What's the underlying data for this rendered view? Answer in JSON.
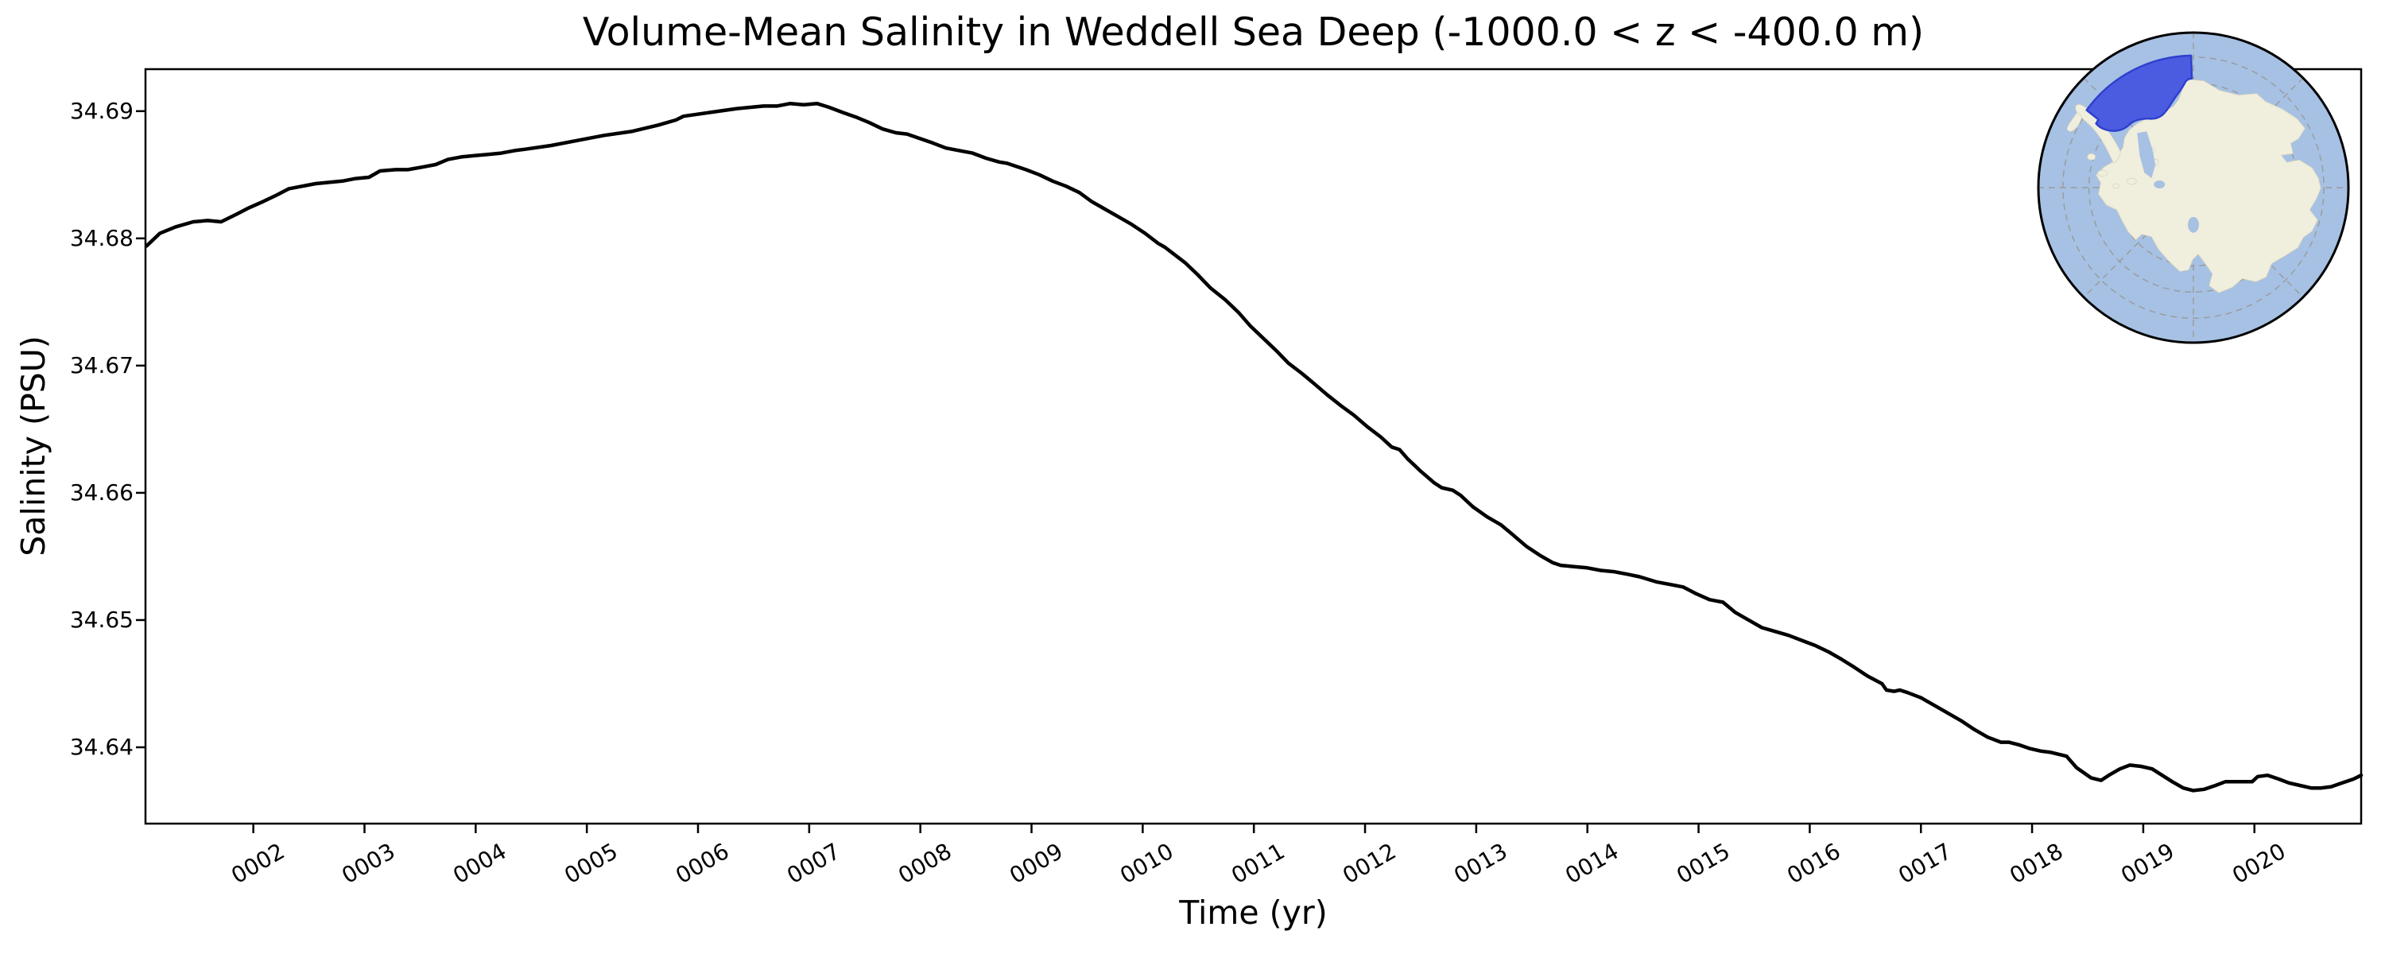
{
  "title": "Volume-Mean Salinity in Weddell Sea Deep (-1000.0 < z < -400.0 m)",
  "chart_data": {
    "type": "line",
    "title": "Volume-Mean Salinity in Weddell Sea Deep (-1000.0 < z < -400.0 m)",
    "xlabel": "Time (yr)",
    "ylabel": "Salinity (PSU)",
    "xlim": [
      1.03,
      20.96
    ],
    "ylim": [
      34.634,
      34.6933
    ],
    "grid": false,
    "line_color": "#000000",
    "line_width": 4.5,
    "xticks": {
      "values": [
        2,
        3,
        4,
        5,
        6,
        7,
        8,
        9,
        10,
        11,
        12,
        13,
        14,
        15,
        16,
        17,
        18,
        19,
        20
      ],
      "labels": [
        "0002",
        "0003",
        "0004",
        "0005",
        "0006",
        "0007",
        "0008",
        "0009",
        "0010",
        "0011",
        "0012",
        "0013",
        "0014",
        "0015",
        "0016",
        "0017",
        "0018",
        "0019",
        "0020"
      ],
      "rotation_deg": 30
    },
    "yticks": {
      "values": [
        34.64,
        34.65,
        34.66,
        34.67,
        34.68,
        34.69
      ],
      "labels": [
        "34.64",
        "34.65",
        "34.66",
        "34.67",
        "34.68",
        "34.69"
      ]
    },
    "series": [
      {
        "name": "volume-mean salinity",
        "points": [
          [
            1.04,
            34.6794
          ],
          [
            1.16,
            34.6804
          ],
          [
            1.3,
            34.6809
          ],
          [
            1.46,
            34.6813
          ],
          [
            1.59,
            34.6814
          ],
          [
            1.71,
            34.6813
          ],
          [
            1.85,
            34.6819
          ],
          [
            1.96,
            34.6824
          ],
          [
            2.09,
            34.6829
          ],
          [
            2.21,
            34.6834
          ],
          [
            2.32,
            34.6839
          ],
          [
            2.44,
            34.6841
          ],
          [
            2.56,
            34.6843
          ],
          [
            2.68,
            34.6844
          ],
          [
            2.8,
            34.6845
          ],
          [
            2.92,
            34.6847
          ],
          [
            3.04,
            34.6848
          ],
          [
            3.14,
            34.6853
          ],
          [
            3.28,
            34.6854
          ],
          [
            3.39,
            34.6854
          ],
          [
            3.52,
            34.6856
          ],
          [
            3.64,
            34.6858
          ],
          [
            3.75,
            34.6862
          ],
          [
            3.87,
            34.6864
          ],
          [
            3.99,
            34.6865
          ],
          [
            4.11,
            34.6866
          ],
          [
            4.23,
            34.6867
          ],
          [
            4.35,
            34.6869
          ],
          [
            4.44,
            34.687
          ],
          [
            4.68,
            34.6873
          ],
          [
            4.92,
            34.6877
          ],
          [
            5.16,
            34.6881
          ],
          [
            5.4,
            34.6884
          ],
          [
            5.64,
            34.6889
          ],
          [
            5.8,
            34.6893
          ],
          [
            5.87,
            34.6896
          ],
          [
            6.11,
            34.6899
          ],
          [
            6.35,
            34.6902
          ],
          [
            6.47,
            34.6903
          ],
          [
            6.59,
            34.6904
          ],
          [
            6.71,
            34.6904
          ],
          [
            6.83,
            34.6906
          ],
          [
            6.95,
            34.6905
          ],
          [
            7.07,
            34.6906
          ],
          [
            7.18,
            34.6903
          ],
          [
            7.3,
            34.6899
          ],
          [
            7.43,
            34.6895
          ],
          [
            7.54,
            34.6891
          ],
          [
            7.66,
            34.6886
          ],
          [
            7.78,
            34.6883
          ],
          [
            7.88,
            34.6882
          ],
          [
            8.11,
            34.6875
          ],
          [
            8.23,
            34.6871
          ],
          [
            8.35,
            34.6869
          ],
          [
            8.47,
            34.6867
          ],
          [
            8.59,
            34.6863
          ],
          [
            8.71,
            34.686
          ],
          [
            8.78,
            34.6859
          ],
          [
            8.95,
            34.6854
          ],
          [
            9.07,
            34.685
          ],
          [
            9.19,
            34.6845
          ],
          [
            9.31,
            34.6841
          ],
          [
            9.43,
            34.6836
          ],
          [
            9.54,
            34.6829
          ],
          [
            9.66,
            34.6823
          ],
          [
            9.78,
            34.6817
          ],
          [
            9.9,
            34.6811
          ],
          [
            10.02,
            34.6804
          ],
          [
            10.14,
            34.6796
          ],
          [
            10.2,
            34.6793
          ],
          [
            10.26,
            34.6789
          ],
          [
            10.38,
            34.6781
          ],
          [
            10.5,
            34.6771
          ],
          [
            10.61,
            34.6761
          ],
          [
            10.74,
            34.6752
          ],
          [
            10.86,
            34.6742
          ],
          [
            10.97,
            34.6731
          ],
          [
            11.09,
            34.6721
          ],
          [
            11.21,
            34.6711
          ],
          [
            11.31,
            34.6702
          ],
          [
            11.43,
            34.6694
          ],
          [
            11.54,
            34.6686
          ],
          [
            11.66,
            34.6677
          ],
          [
            11.79,
            34.6668
          ],
          [
            11.9,
            34.6661
          ],
          [
            12.02,
            34.6652
          ],
          [
            12.14,
            34.6644
          ],
          [
            12.24,
            34.6636
          ],
          [
            12.31,
            34.6634
          ],
          [
            12.38,
            34.6627
          ],
          [
            12.5,
            34.6617
          ],
          [
            12.62,
            34.6608
          ],
          [
            12.69,
            34.6604
          ],
          [
            12.79,
            34.6602
          ],
          [
            12.86,
            34.6598
          ],
          [
            12.97,
            34.6589
          ],
          [
            13.1,
            34.6581
          ],
          [
            13.22,
            34.6575
          ],
          [
            13.33,
            34.6567
          ],
          [
            13.45,
            34.6558
          ],
          [
            13.57,
            34.6551
          ],
          [
            13.69,
            34.6545
          ],
          [
            13.76,
            34.6543
          ],
          [
            13.88,
            34.6542
          ],
          [
            14.0,
            34.6541
          ],
          [
            14.12,
            34.6539
          ],
          [
            14.24,
            34.6538
          ],
          [
            14.36,
            34.6536
          ],
          [
            14.47,
            34.6534
          ],
          [
            14.62,
            34.653
          ],
          [
            14.74,
            34.6528
          ],
          [
            14.86,
            34.6526
          ],
          [
            14.97,
            34.6521
          ],
          [
            15.1,
            34.6516
          ],
          [
            15.22,
            34.6514
          ],
          [
            15.33,
            34.6506
          ],
          [
            15.45,
            34.65
          ],
          [
            15.57,
            34.6494
          ],
          [
            15.69,
            34.6491
          ],
          [
            15.81,
            34.6488
          ],
          [
            15.93,
            34.6484
          ],
          [
            16.05,
            34.648
          ],
          [
            16.17,
            34.6475
          ],
          [
            16.29,
            34.6469
          ],
          [
            16.4,
            34.6463
          ],
          [
            16.52,
            34.6456
          ],
          [
            16.65,
            34.645
          ],
          [
            16.69,
            34.6445
          ],
          [
            16.76,
            34.6444
          ],
          [
            16.81,
            34.6445
          ],
          [
            16.88,
            34.6443
          ],
          [
            17.0,
            34.6439
          ],
          [
            17.12,
            34.6433
          ],
          [
            17.24,
            34.6427
          ],
          [
            17.36,
            34.6421
          ],
          [
            17.48,
            34.6414
          ],
          [
            17.6,
            34.6408
          ],
          [
            17.72,
            34.6404
          ],
          [
            17.79,
            34.6404
          ],
          [
            17.88,
            34.6402
          ],
          [
            17.98,
            34.6399
          ],
          [
            18.08,
            34.6397
          ],
          [
            18.17,
            34.6396
          ],
          [
            18.31,
            34.6393
          ],
          [
            18.4,
            34.6384
          ],
          [
            18.53,
            34.6376
          ],
          [
            18.62,
            34.6374
          ],
          [
            18.69,
            34.6378
          ],
          [
            18.79,
            34.6383
          ],
          [
            18.88,
            34.6386
          ],
          [
            18.98,
            34.6385
          ],
          [
            19.08,
            34.6383
          ],
          [
            19.17,
            34.6378
          ],
          [
            19.26,
            34.6373
          ],
          [
            19.36,
            34.6368
          ],
          [
            19.45,
            34.6366
          ],
          [
            19.55,
            34.6367
          ],
          [
            19.65,
            34.637
          ],
          [
            19.74,
            34.6373
          ],
          [
            19.83,
            34.6373
          ],
          [
            19.98,
            34.6373
          ],
          [
            20.03,
            34.6377
          ],
          [
            20.12,
            34.6378
          ],
          [
            20.22,
            34.6375
          ],
          [
            20.31,
            34.6372
          ],
          [
            20.41,
            34.637
          ],
          [
            20.51,
            34.6368
          ],
          [
            20.6,
            34.6368
          ],
          [
            20.69,
            34.6369
          ],
          [
            20.79,
            34.6372
          ],
          [
            20.89,
            34.6375
          ],
          [
            20.96,
            34.6378
          ]
        ]
      }
    ]
  },
  "inset_map": {
    "region_name": "Weddell Sea Deep region",
    "projection": "south polar stereographic",
    "ocean_color": "#a6c1e3",
    "land_color": "#f0eedc",
    "highlight_fill": "#4b5ce1",
    "highlight_stroke": "#2f40cf",
    "gridline_color": "#9a9a9a",
    "border_color": "#000000"
  }
}
